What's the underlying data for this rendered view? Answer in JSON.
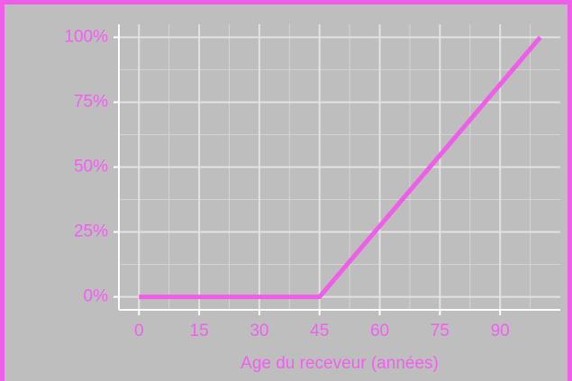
{
  "chart_data": {
    "type": "line",
    "x_label": "Age du receveur (années)",
    "x": [
      0,
      45,
      100
    ],
    "series": [
      {
        "color": "#ee5ee8",
        "values": [
          0,
          0,
          100
        ]
      }
    ],
    "xlim": [
      -5,
      105
    ],
    "xticks": [
      0,
      15,
      30,
      45,
      60,
      75,
      90
    ],
    "ylim": [
      -5,
      105
    ],
    "yticks": [
      {
        "value": 0,
        "label": "0%"
      },
      {
        "value": 25,
        "label": "25%"
      },
      {
        "value": 50,
        "label": "50%"
      },
      {
        "value": 75,
        "label": "75%"
      },
      {
        "value": 100,
        "label": "100%"
      }
    ],
    "grid": true,
    "minor_grid": true
  }
}
